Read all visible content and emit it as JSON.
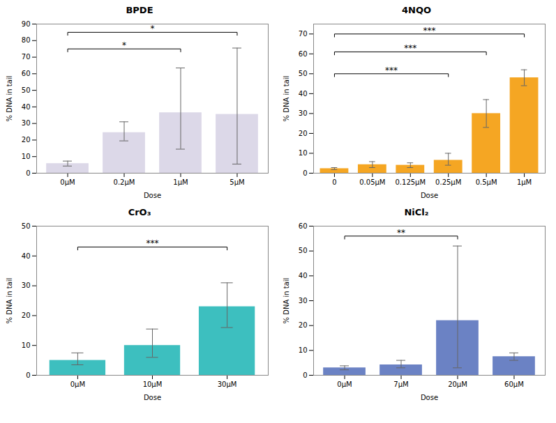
{
  "chart_data": [
    {
      "type": "bar",
      "title": "BPDE",
      "categories": [
        "0μM",
        "0.2μM",
        "1μM",
        "5μM"
      ],
      "values": [
        5.8,
        24.5,
        36.5,
        35.5
      ],
      "yerr_upper": [
        1.5,
        6.5,
        27,
        40
      ],
      "yerr_lower": [
        1.5,
        5,
        22,
        30
      ],
      "color": "#dcd8e8",
      "xlabel": "Dose",
      "ylabel": "% DNA in tail",
      "ylim": [
        0,
        90
      ],
      "yticks": [
        0,
        10,
        20,
        30,
        40,
        50,
        60,
        70,
        80,
        90
      ],
      "significance": [
        {
          "from": "0μM",
          "to": "1μM",
          "y": 75,
          "label": "*"
        },
        {
          "from": "0μM",
          "to": "5μM",
          "y": 85,
          "label": "*"
        }
      ]
    },
    {
      "type": "bar",
      "title": "4NQO",
      "categories": [
        "0",
        "0.05μM",
        "0.125μM",
        "0.25μM",
        "0.5μM",
        "1μM"
      ],
      "values": [
        2.3,
        4.3,
        4.0,
        6.5,
        30,
        48
      ],
      "yerr_upper": [
        0.5,
        1.5,
        1.2,
        3.5,
        7,
        4
      ],
      "yerr_lower": [
        0.5,
        1.5,
        1.2,
        2.5,
        7,
        4
      ],
      "color": "#f5a623",
      "xlabel": "Dose",
      "ylabel": "% DNA in tail",
      "ylim": [
        0,
        75
      ],
      "yticks": [
        0,
        10,
        20,
        30,
        40,
        50,
        60,
        70
      ],
      "significance": [
        {
          "from": "0",
          "to": "0.25μM",
          "y": 50,
          "label": "***"
        },
        {
          "from": "0",
          "to": "0.5μM",
          "y": 61,
          "label": "***"
        },
        {
          "from": "0",
          "to": "1μM",
          "y": 70,
          "label": "***"
        }
      ]
    },
    {
      "type": "bar",
      "title": "CrO₃",
      "categories": [
        "0μM",
        "10μM",
        "30μM"
      ],
      "values": [
        5,
        10,
        23
      ],
      "yerr_upper": [
        2.5,
        5.5,
        8
      ],
      "yerr_lower": [
        1.5,
        4,
        7
      ],
      "color": "#3dbfbf",
      "xlabel": "Dose",
      "ylabel": "% DNA in tail",
      "ylim": [
        0,
        50
      ],
      "yticks": [
        0,
        10,
        20,
        30,
        40,
        50
      ],
      "significance": [
        {
          "from": "0μM",
          "to": "30μM",
          "y": 43,
          "label": "***"
        }
      ]
    },
    {
      "type": "bar",
      "title": "NiCl₂",
      "categories": [
        "0μM",
        "7μM",
        "20μM",
        "60μM"
      ],
      "values": [
        3.0,
        4.2,
        22,
        7.5
      ],
      "yerr_upper": [
        0.8,
        1.8,
        30,
        1.5
      ],
      "yerr_lower": [
        0.8,
        1.2,
        19,
        1.5
      ],
      "color": "#6b82c4",
      "xlabel": "Dose",
      "ylabel": "% DNA in tail",
      "ylim": [
        0,
        60
      ],
      "yticks": [
        0,
        10,
        20,
        30,
        40,
        50,
        60
      ],
      "significance": [
        {
          "from": "0μM",
          "to": "20μM",
          "y": 56,
          "label": "**"
        }
      ]
    }
  ]
}
